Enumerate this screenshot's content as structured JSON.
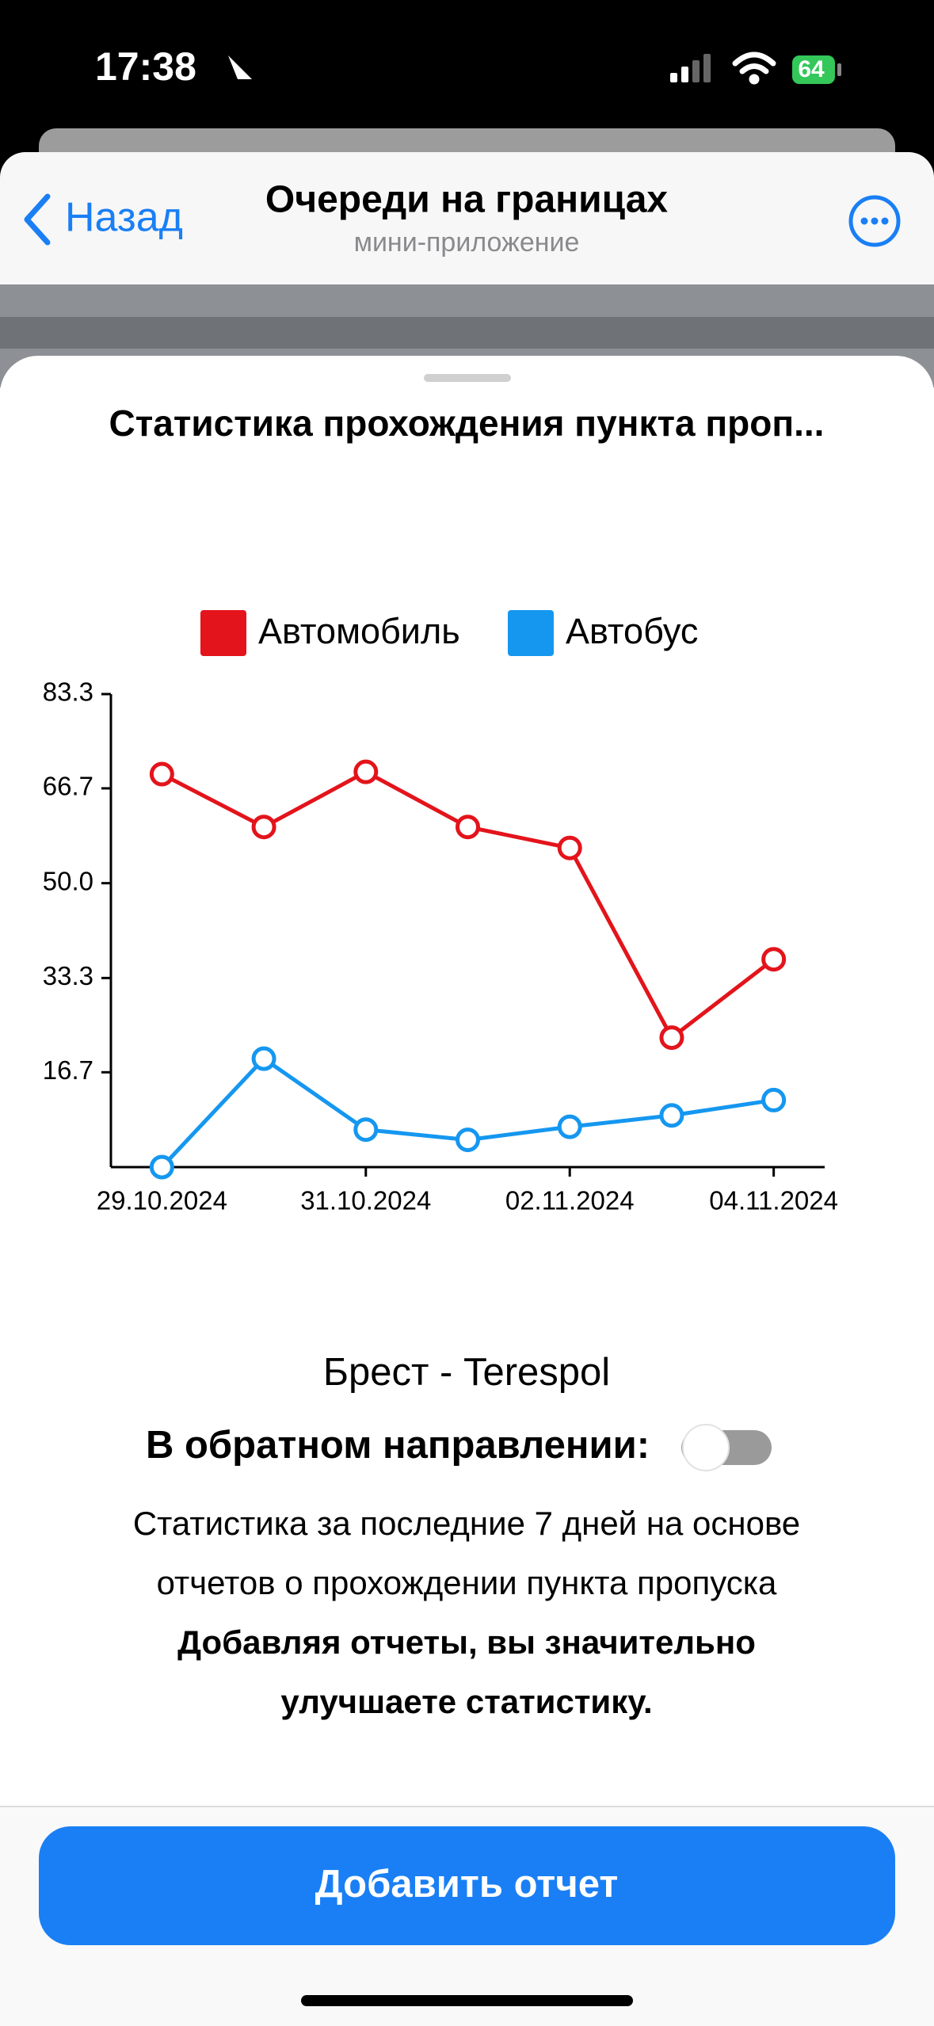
{
  "status": {
    "time": "17:38",
    "battery": "64"
  },
  "nav": {
    "back": "Назад",
    "title": "Очереди на границах",
    "subtitle": "мини-приложение"
  },
  "sheet": {
    "title": "Статистика прохождения пункта проп...",
    "route": "Брест - Terespol",
    "toggle_label": "В обратном направлении:",
    "description": [
      "Статистика за последние 7 дней на основе",
      "отчетов о прохождении пункта пропуска"
    ],
    "emphasis": [
      "Добавляя отчеты, вы значительно",
      "улучшаете статистику."
    ],
    "button": "Добавить отчет"
  },
  "chart_data": {
    "type": "line",
    "x": [
      "2024-10-29",
      "2024-10-30",
      "2024-10-31",
      "2024-11-01",
      "2024-11-02",
      "2024-11-03",
      "2024-11-04"
    ],
    "series": [
      {
        "name": "Автомобиль",
        "color": "#e3141b",
        "values": [
          69.2,
          59.9,
          69.6,
          59.9,
          56.2,
          22.8,
          36.6
        ]
      },
      {
        "name": "Автобус",
        "color": "#1597f0",
        "values": [
          0,
          19.1,
          6.6,
          4.8,
          7.1,
          9.1,
          11.8
        ]
      }
    ],
    "xlim": [
      "2024-10-28T12:00",
      "2024-11-04T12:00"
    ],
    "xticks": [
      {
        "value": "2024-10-29",
        "label": "29.10.2024"
      },
      {
        "value": "2024-10-31",
        "label": "31.10.2024"
      },
      {
        "value": "2024-11-02",
        "label": "02.11.2024"
      },
      {
        "value": "2024-11-04",
        "label": "04.11.2024"
      }
    ],
    "ylim": [
      0,
      83.3
    ],
    "yticks": [
      16.7,
      33.3,
      {
        "value": 50,
        "label": "50.0"
      },
      66.7,
      83.3
    ],
    "legend": "top"
  }
}
